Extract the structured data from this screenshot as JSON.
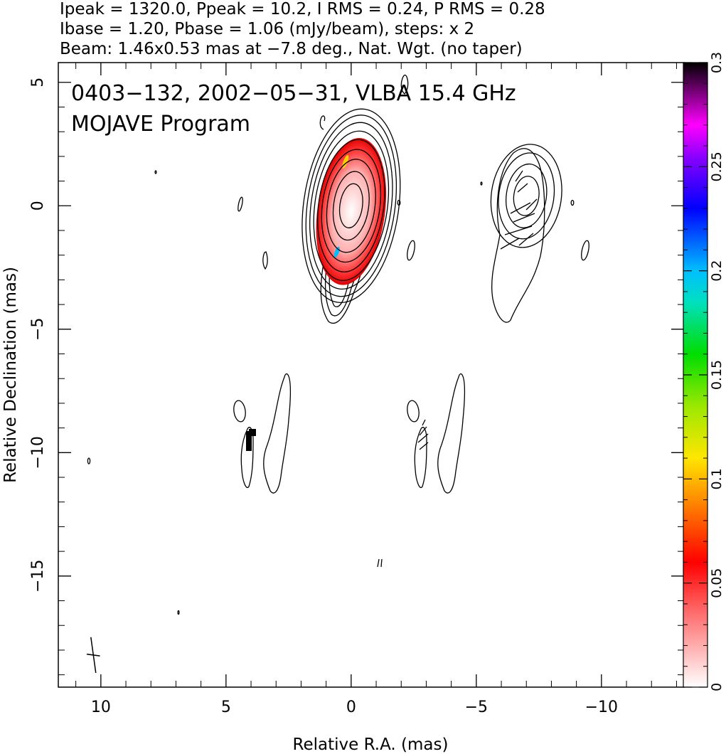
{
  "header": {
    "line1": "Ipeak = 1320.0, Ppeak = 10.2, I RMS = 0.24, P RMS = 0.28",
    "line2": "Ibase = 1.20, Pbase = 1.06 (mJy/beam), steps: x 2",
    "line3": "Beam: 1.46x0.53 mas at −7.8 deg., Nat. Wgt. (no taper)"
  },
  "chart_data": {
    "type": "heatmap",
    "source_label": "0403−132, 2002−05−31, VLBA 15.4 GHz",
    "program_label": "MOJAVE Program",
    "xlabel": "Relative R.A. (mas)",
    "ylabel": "Relative Declination (mas)",
    "xlim": [
      11.7,
      -13.3
    ],
    "ylim": [
      -19.5,
      5.8
    ],
    "x_ticks": [
      10,
      5,
      0,
      -5,
      -10
    ],
    "x_tick_labels": [
      "10",
      "5",
      "0",
      "−5",
      "−10"
    ],
    "y_ticks": [
      5,
      0,
      -5,
      -10,
      -15
    ],
    "y_tick_labels": [
      "5",
      "0",
      "−5",
      "−10",
      "−15"
    ],
    "colorbar": {
      "range": [
        0,
        0.3
      ],
      "ticks": [
        0,
        0.05,
        0.1,
        0.15,
        0.2,
        0.25,
        0.3
      ],
      "tick_labels": [
        "0",
        "0.05",
        "0.1",
        "0.15",
        "0.2",
        "0.25",
        "0.3"
      ],
      "colormap_stops": [
        {
          "v": 0.0,
          "color": "#ffffff"
        },
        {
          "v": 0.04,
          "color": "#ff5a5a"
        },
        {
          "v": 0.06,
          "color": "#ff0000"
        },
        {
          "v": 0.09,
          "color": "#ff8c00"
        },
        {
          "v": 0.11,
          "color": "#ffe600"
        },
        {
          "v": 0.135,
          "color": "#9be800"
        },
        {
          "v": 0.16,
          "color": "#00dd00"
        },
        {
          "v": 0.185,
          "color": "#00e0c0"
        },
        {
          "v": 0.2,
          "color": "#00bfff"
        },
        {
          "v": 0.23,
          "color": "#0000ff"
        },
        {
          "v": 0.255,
          "color": "#8c00ff"
        },
        {
          "v": 0.27,
          "color": "#ff00ff"
        },
        {
          "v": 0.3,
          "color": "#000000"
        }
      ]
    },
    "contours": {
      "core": {
        "x": 0,
        "y": 0,
        "levels": [
          [
            0.45,
            0.9
          ],
          [
            0.7,
            1.4
          ],
          [
            0.95,
            1.9
          ],
          [
            1.15,
            2.3
          ],
          [
            1.3,
            2.7
          ],
          [
            1.45,
            3.05
          ],
          [
            1.6,
            3.4
          ],
          [
            1.75,
            3.7
          ],
          [
            1.9,
            3.95
          ]
        ]
      },
      "pol_core": {
        "x": -7.0,
        "y": 0.4,
        "levels": [
          [
            0.5,
            0.8
          ],
          [
            0.8,
            1.3
          ],
          [
            1.1,
            1.75
          ],
          [
            1.4,
            2.1
          ]
        ]
      },
      "polarized_fill_peak": {
        "x": 0,
        "y": 0.2,
        "value": 0.05
      }
    },
    "beam": {
      "major_mas": 1.46,
      "minor_mas": 0.53,
      "pa_deg": -7.8,
      "x": 10.3,
      "y": -18.2
    }
  },
  "colors": {
    "frame": "#000000",
    "background": "#ffffff"
  }
}
